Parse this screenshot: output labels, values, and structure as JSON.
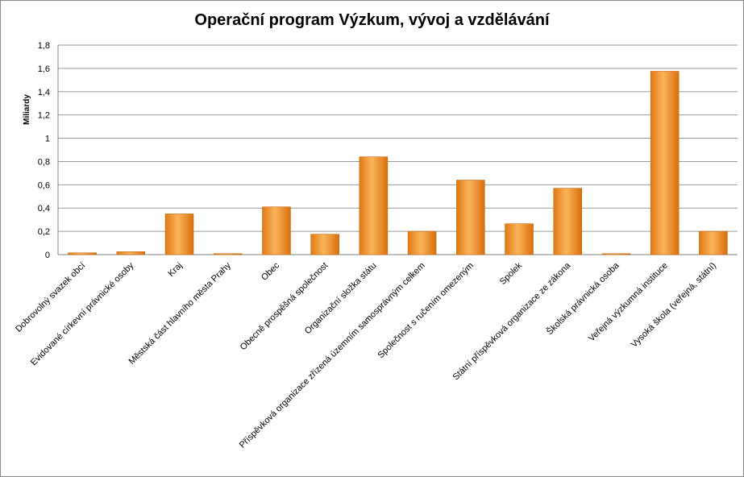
{
  "chart_data": {
    "type": "bar",
    "title": "Operační program Výzkum, vývoj a vzdělávání",
    "ylabel": "Miliardy",
    "xlabel": "",
    "ylim": [
      0,
      1.8
    ],
    "yticks": [
      "0",
      "0,2",
      "0,4",
      "0,6",
      "0,8",
      "1",
      "1,2",
      "1,4",
      "1,6",
      "1,8"
    ],
    "grid": true,
    "legend": "none",
    "bar_color": "#f29a3a",
    "categories": [
      "Dobrovolný svazek obcí",
      "Evidované církevní právnické osoby",
      "Kraj",
      "Městská část hlavního města Prahy",
      "Obec",
      "Obecně prospěšná společnost",
      "Organizační složka státu",
      "Příspěvková organizace zřízená územním samosprávným celkem",
      "Společnost s ručením omezeným",
      "Spolek",
      "Státní příspěvková organizace ze zákona",
      "Školská právnická osoba",
      "Veřejná výzkumná instituce",
      "Vysoká škola (veřejná, státní)"
    ],
    "values": [
      0.015,
      0.025,
      0.35,
      0.005,
      0.41,
      0.175,
      0.84,
      0.2,
      0.64,
      0.265,
      0.57,
      0.004,
      1.575,
      0.2
    ]
  }
}
